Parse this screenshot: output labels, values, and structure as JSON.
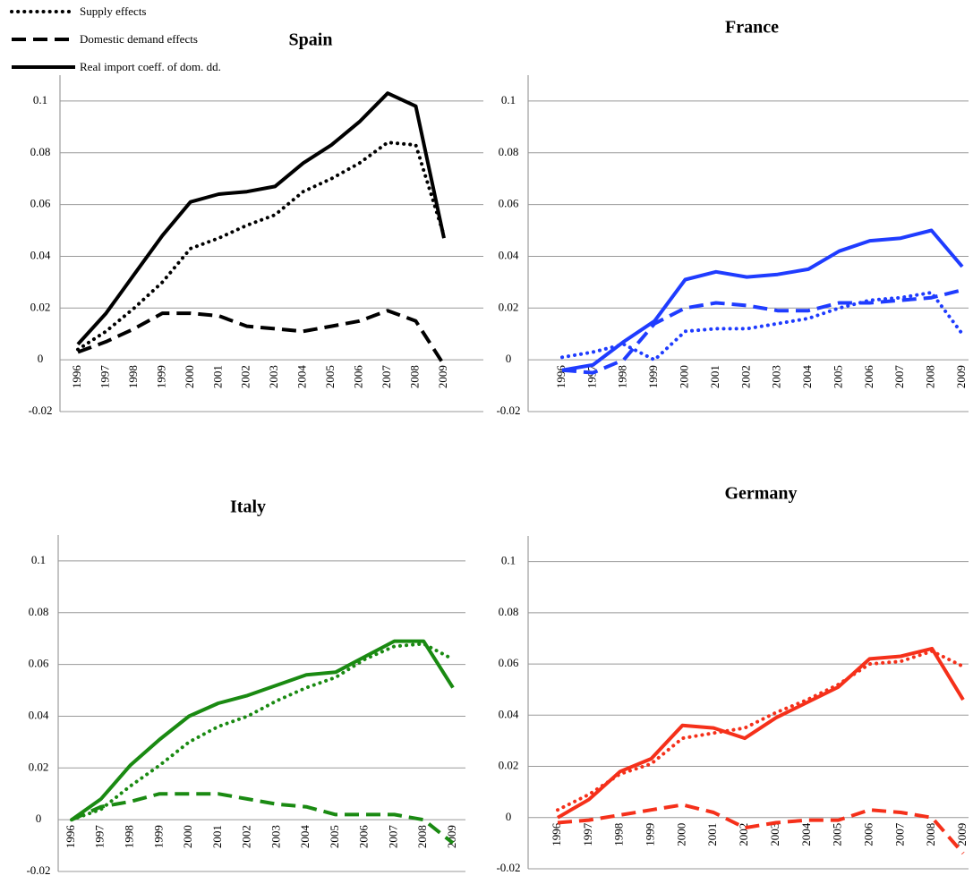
{
  "chart_data": [
    {
      "type": "line",
      "title": "Spain",
      "categories": [
        "1996",
        "1997",
        "1998",
        "1999",
        "2000",
        "2001",
        "2002",
        "2003",
        "2004",
        "2005",
        "2006",
        "2007",
        "2008",
        "2009"
      ],
      "ylim": [
        -0.02,
        0.11
      ],
      "yticks": [
        -0.02,
        0,
        0.02,
        0.04,
        0.06,
        0.08,
        0.1
      ],
      "grid": true,
      "series": [
        {
          "name": "Supply effects",
          "color": "#000000",
          "style": "dotted",
          "values": [
            0.004,
            0.011,
            0.02,
            0.03,
            0.043,
            0.047,
            0.052,
            0.056,
            0.065,
            0.07,
            0.076,
            0.084,
            0.083,
            0.048
          ]
        },
        {
          "name": "Domestic demand effects",
          "color": "#000000",
          "style": "dashed",
          "values": [
            0.003,
            0.007,
            0.012,
            0.018,
            0.018,
            0.017,
            0.013,
            0.012,
            0.011,
            0.013,
            0.015,
            0.019,
            0.015,
            -0.002
          ]
        },
        {
          "name": "Real import coeff. of dom. dd.",
          "color": "#000000",
          "style": "solid",
          "values": [
            0.006,
            0.018,
            0.033,
            0.048,
            0.061,
            0.064,
            0.065,
            0.067,
            0.076,
            0.083,
            0.092,
            0.103,
            0.098,
            0.047
          ]
        }
      ]
    },
    {
      "type": "line",
      "title": "France",
      "categories": [
        "1996",
        "1997",
        "1998",
        "1999",
        "2000",
        "2001",
        "2002",
        "2003",
        "2004",
        "2005",
        "2006",
        "2007",
        "2008",
        "2009"
      ],
      "ylim": [
        -0.02,
        0.11
      ],
      "yticks": [
        -0.02,
        0,
        0.02,
        0.04,
        0.06,
        0.08,
        0.1
      ],
      "grid": true,
      "series": [
        {
          "color": "#1f3cff",
          "style": "dotted",
          "values": [
            0.001,
            0.003,
            0.006,
            0.0,
            0.011,
            0.012,
            0.012,
            0.014,
            0.016,
            0.02,
            0.023,
            0.024,
            0.026,
            0.01
          ]
        },
        {
          "color": "#1f3cff",
          "style": "dashed",
          "values": [
            -0.004,
            -0.005,
            0.0,
            0.014,
            0.02,
            0.022,
            0.021,
            0.019,
            0.019,
            0.022,
            0.022,
            0.023,
            0.024,
            0.027
          ]
        },
        {
          "color": "#1f3cff",
          "style": "solid",
          "values": [
            -0.004,
            -0.002,
            0.007,
            0.015,
            0.031,
            0.034,
            0.032,
            0.033,
            0.035,
            0.042,
            0.046,
            0.047,
            0.05,
            0.036
          ]
        }
      ]
    },
    {
      "type": "line",
      "title": "Italy",
      "categories": [
        "1996",
        "1997",
        "1998",
        "1999",
        "2000",
        "2001",
        "2002",
        "2003",
        "2004",
        "2005",
        "2006",
        "2007",
        "2008",
        "2009"
      ],
      "ylim": [
        -0.02,
        0.11
      ],
      "yticks": [
        -0.02,
        0,
        0.02,
        0.04,
        0.06,
        0.08,
        0.1
      ],
      "grid": true,
      "series": [
        {
          "color": "#1a8a12",
          "style": "dotted",
          "values": [
            0.0,
            0.004,
            0.013,
            0.021,
            0.03,
            0.036,
            0.04,
            0.046,
            0.051,
            0.055,
            0.062,
            0.067,
            0.068,
            0.062
          ]
        },
        {
          "color": "#1a8a12",
          "style": "dashed",
          "values": [
            0.0,
            0.005,
            0.007,
            0.01,
            0.01,
            0.01,
            0.008,
            0.006,
            0.005,
            0.002,
            0.002,
            0.002,
            0.0,
            -0.009
          ]
        },
        {
          "color": "#1a8a12",
          "style": "solid",
          "values": [
            0.0,
            0.008,
            0.021,
            0.031,
            0.04,
            0.045,
            0.048,
            0.052,
            0.056,
            0.057,
            0.063,
            0.069,
            0.069,
            0.051
          ]
        }
      ]
    },
    {
      "type": "line",
      "title": "Germany",
      "categories": [
        "1996",
        "1997",
        "1998",
        "1999",
        "2000",
        "2001",
        "2002",
        "2003",
        "2004",
        "2005",
        "2006",
        "2007",
        "2008",
        "2009"
      ],
      "ylim": [
        -0.02,
        0.11
      ],
      "yticks": [
        -0.02,
        0,
        0.02,
        0.04,
        0.06,
        0.08,
        0.1
      ],
      "grid": true,
      "series": [
        {
          "color": "#f5301a",
          "style": "dotted",
          "values": [
            0.003,
            0.009,
            0.017,
            0.021,
            0.031,
            0.033,
            0.035,
            0.041,
            0.046,
            0.052,
            0.06,
            0.061,
            0.065,
            0.059
          ]
        },
        {
          "color": "#f5301a",
          "style": "dashed",
          "values": [
            -0.002,
            -0.001,
            0.001,
            0.003,
            0.005,
            0.002,
            -0.004,
            -0.002,
            -0.001,
            -0.001,
            0.003,
            0.002,
            0.0,
            -0.014
          ]
        },
        {
          "color": "#f5301a",
          "style": "solid",
          "values": [
            0.0,
            0.007,
            0.018,
            0.023,
            0.036,
            0.035,
            0.031,
            0.039,
            0.045,
            0.051,
            0.062,
            0.063,
            0.066,
            0.046
          ]
        }
      ]
    }
  ]
}
